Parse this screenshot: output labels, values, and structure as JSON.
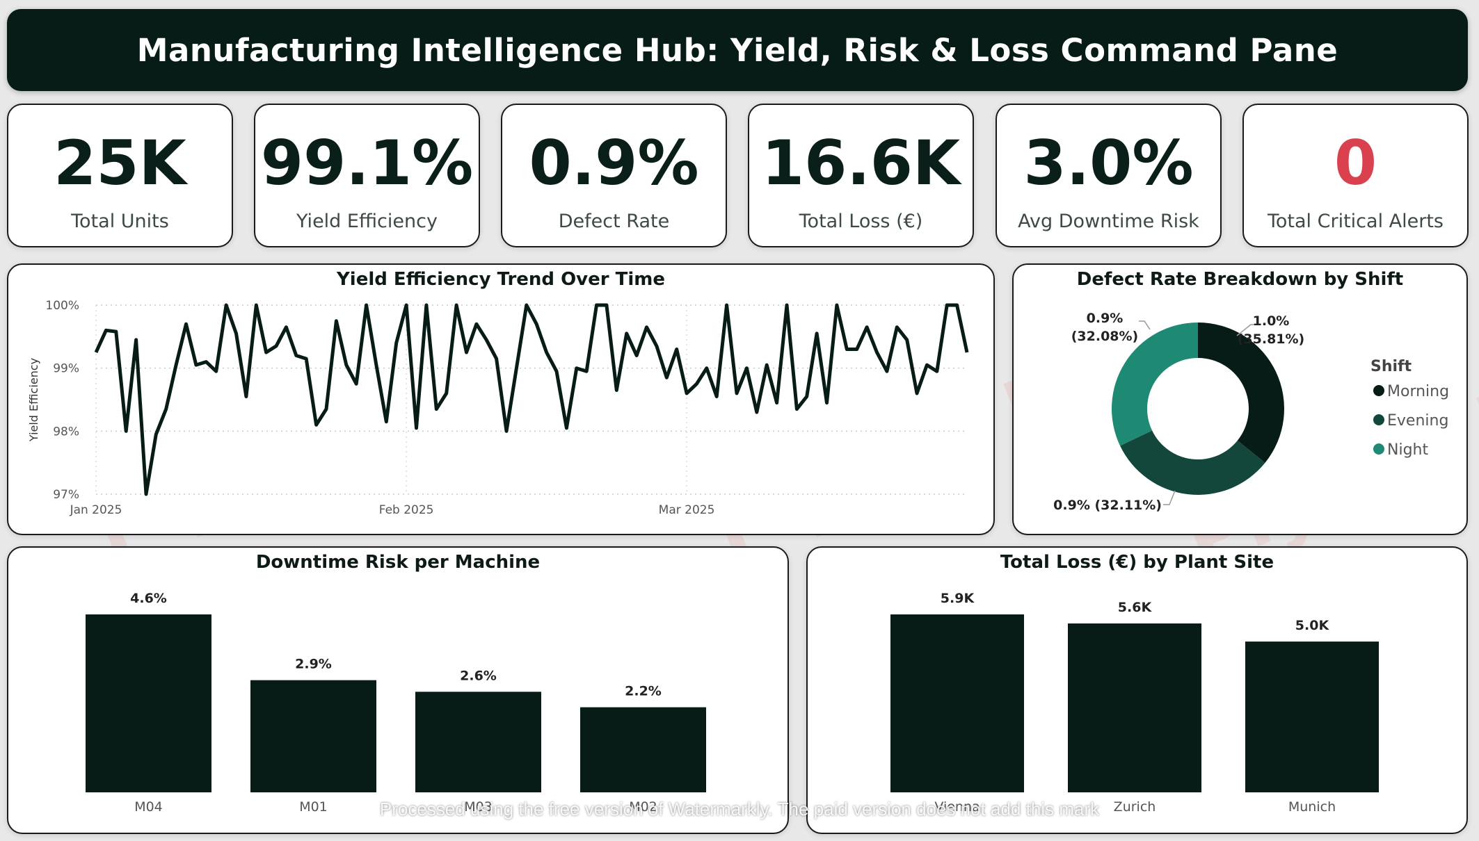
{
  "header": {
    "title": "Manufacturing Intelligence Hub: Yield, Risk & Loss Command Pane"
  },
  "kpis": [
    {
      "value": "25K",
      "label": "Total Units"
    },
    {
      "value": "99.1%",
      "label": "Yield Efficiency"
    },
    {
      "value": "0.9%",
      "label": "Defect Rate"
    },
    {
      "value": "16.6K",
      "label": "Total Loss (€)"
    },
    {
      "value": "3.0%",
      "label": "Avg Downtime Risk"
    },
    {
      "value": "0",
      "label": "Total Critical Alerts"
    }
  ],
  "colors": {
    "dark": "#071b17",
    "morning": "#071b17",
    "evening": "#14473c",
    "night": "#1e8a73",
    "alert": "#d9414f"
  },
  "watermark": {
    "name": "Piyush Kumar",
    "notice": "Processed using the free version of Watermarkly. The paid version does not add this mark"
  },
  "chart_data": [
    {
      "type": "line",
      "title": "Yield Efficiency Trend Over Time",
      "ylabel": "Yield Efficiency",
      "xlabel": "",
      "ylim": [
        97,
        100
      ],
      "y_ticks": [
        "97%",
        "98%",
        "99%",
        "100%"
      ],
      "x_ticks": [
        {
          "label": "Jan 2025",
          "day": 0
        },
        {
          "label": "Feb 2025",
          "day": 31
        },
        {
          "label": "Mar 2025",
          "day": 59
        }
      ],
      "grid": true,
      "y": [
        99.25,
        99.6,
        99.58,
        98.0,
        99.45,
        97.0,
        97.95,
        98.35,
        99.05,
        99.7,
        99.05,
        99.1,
        98.95,
        100.0,
        99.55,
        98.55,
        100.0,
        99.25,
        99.35,
        99.65,
        99.2,
        99.15,
        98.1,
        98.35,
        99.75,
        99.05,
        98.75,
        100.0,
        99.05,
        98.15,
        99.4,
        100.0,
        98.05,
        100.0,
        98.35,
        98.6,
        100.0,
        99.25,
        99.7,
        99.45,
        99.15,
        98.0,
        99.0,
        100.0,
        99.7,
        99.25,
        98.95,
        98.05,
        99.0,
        98.95,
        100.0,
        100.0,
        98.65,
        99.55,
        99.2,
        99.65,
        99.35,
        98.85,
        99.3,
        98.6,
        98.75,
        99.0,
        98.55,
        100.0,
        98.6,
        99.0,
        98.3,
        99.05,
        98.45,
        100.0,
        98.35,
        98.55,
        99.55,
        98.45,
        100.0,
        99.3,
        99.3,
        99.65,
        99.25,
        98.95,
        99.65,
        99.45,
        98.6,
        99.05,
        98.95,
        100.0,
        100.0,
        99.25
      ]
    },
    {
      "type": "pie",
      "title": "Defect Rate Breakdown by Shift",
      "legend_title": "Shift",
      "legend_position": "right",
      "slices": [
        {
          "name": "Morning",
          "share": 35.81,
          "value_label": "1.0%",
          "pct_label": "(35.81%)"
        },
        {
          "name": "Evening",
          "share": 32.11,
          "value_label": "0.9%",
          "pct_label": "(32.11%)"
        },
        {
          "name": "Night",
          "share": 32.08,
          "value_label": "0.9%",
          "pct_label": "(32.08%)"
        }
      ]
    },
    {
      "type": "bar",
      "title": "Downtime Risk per Machine",
      "categories": [
        "M04",
        "M01",
        "M03",
        "M02"
      ],
      "values": [
        4.6,
        2.9,
        2.6,
        2.2
      ],
      "labels": [
        "4.6%",
        "2.9%",
        "2.6%",
        "2.2%"
      ],
      "ylim": [
        0,
        4.6
      ]
    },
    {
      "type": "bar",
      "title": "Total Loss (€) by Plant Site",
      "categories": [
        "Vienna",
        "Zurich",
        "Munich"
      ],
      "values": [
        5.9,
        5.6,
        5.0
      ],
      "labels": [
        "5.9K",
        "5.6K",
        "5.0K"
      ],
      "ylim": [
        0,
        5.9
      ]
    }
  ]
}
